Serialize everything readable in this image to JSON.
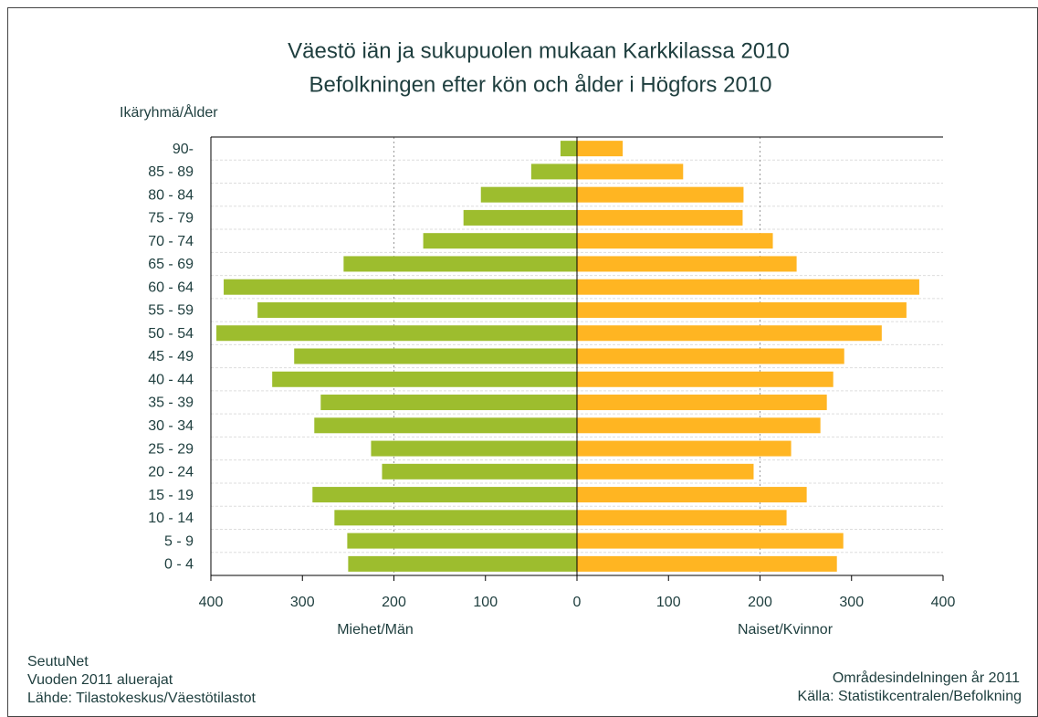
{
  "chart_data": {
    "type": "pyramid",
    "title": "Väestö iän ja sukupuolen mukaan Karkkilassa 2010",
    "subtitle": "Befolkningen efter kön och ålder i Högfors 2010",
    "y_axis_label": "Ikäryhmä/Ålder",
    "left_label": "Miehet/Män",
    "right_label": "Naiset/Kvinnor",
    "categories": [
      "90-",
      "85 - 89",
      "80 - 84",
      "75 - 79",
      "70 - 74",
      "65 - 69",
      "60 - 64",
      "55 - 59",
      "50 - 54",
      "45 - 49",
      "40 - 44",
      "35 - 39",
      "30 - 34",
      "25 - 29",
      "20 - 24",
      "15 - 19",
      "10 - 14",
      "5 - 9",
      "0 - 4"
    ],
    "series": [
      {
        "name": "Miehet/Män",
        "color": "#9dbd2e",
        "side": "left",
        "values": [
          18,
          50,
          105,
          124,
          168,
          255,
          386,
          349,
          394,
          309,
          333,
          280,
          287,
          225,
          213,
          289,
          265,
          251,
          250
        ]
      },
      {
        "name": "Naiset/Kvinnor",
        "color": "#ffb522",
        "side": "right",
        "values": [
          50,
          116,
          182,
          181,
          214,
          240,
          374,
          360,
          333,
          292,
          280,
          273,
          266,
          234,
          193,
          251,
          229,
          291,
          284
        ]
      }
    ],
    "xlim": [
      -400,
      400
    ],
    "xticks": [
      {
        "value": -400,
        "label": "400"
      },
      {
        "value": -300,
        "label": "300"
      },
      {
        "value": -200,
        "label": "200"
      },
      {
        "value": -100,
        "label": "100"
      },
      0,
      100,
      200,
      300,
      400
    ],
    "grid_x": [
      -200,
      200
    ],
    "footer_left": [
      "SeutuNet",
      "Vuoden 2011 aluerajat",
      "Lähde: Tilastokeskus/Väestötilastot"
    ],
    "footer_right": [
      "Områdesindelningen år 2011",
      "Källa: Statistikcentralen/Befolkning"
    ]
  }
}
